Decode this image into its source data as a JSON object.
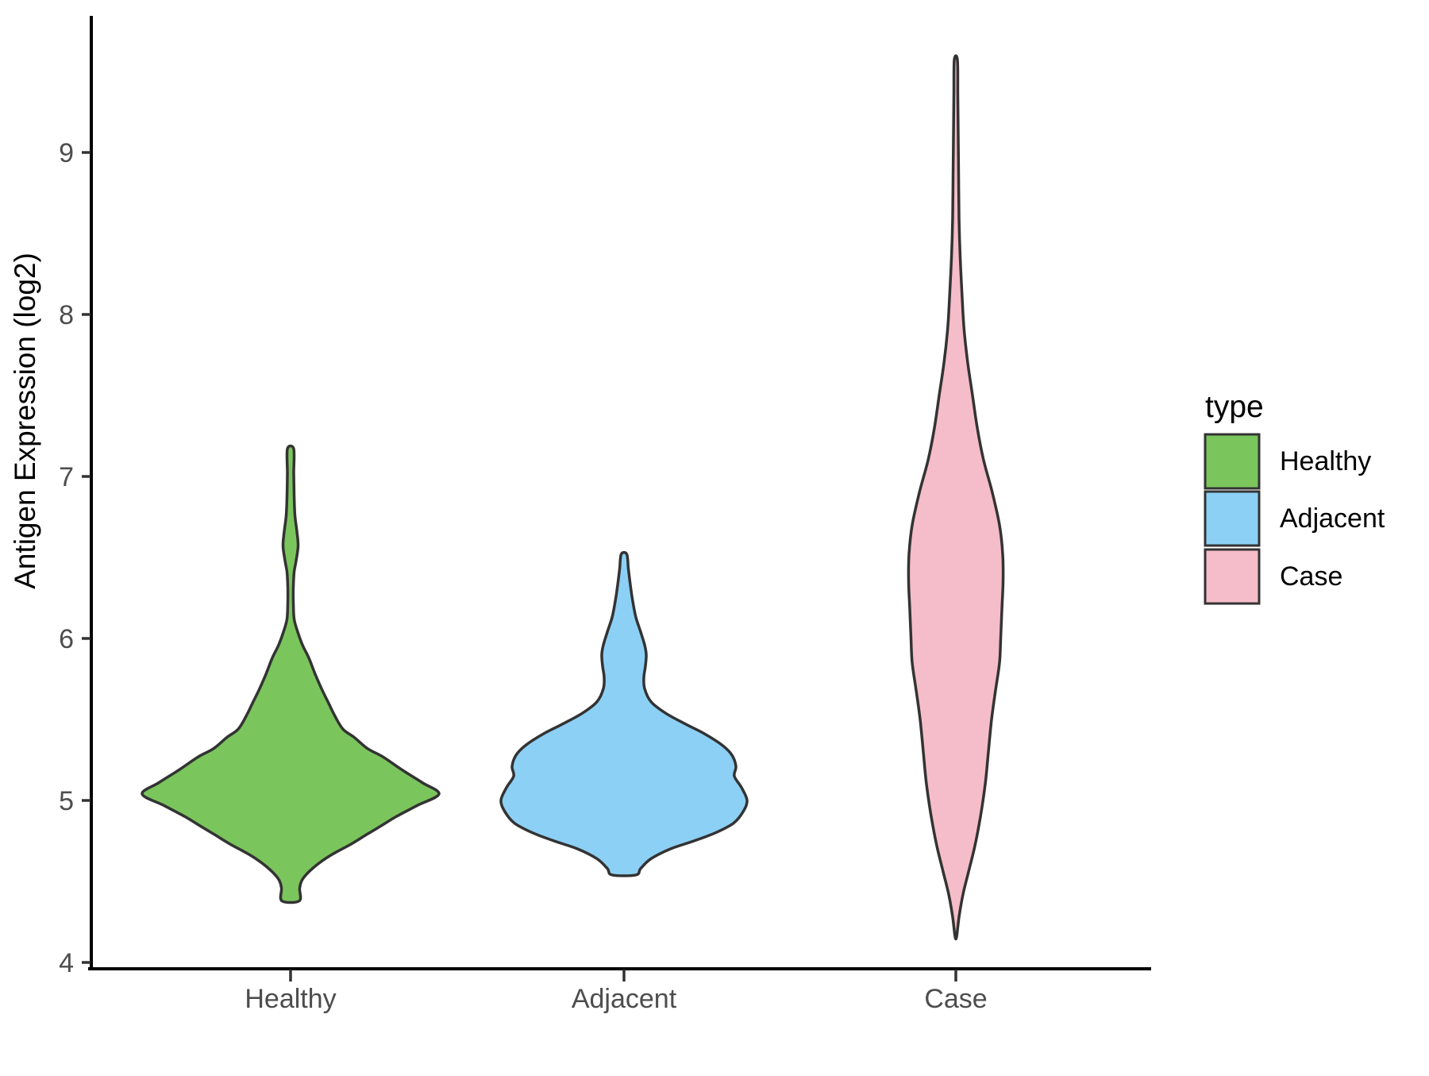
{
  "figure": {
    "background": "#FFFFFF"
  },
  "legend": {
    "title": "type",
    "position": "right",
    "items": [
      {
        "label": "Healthy",
        "color": "#7BC55D"
      },
      {
        "label": "Adjacent",
        "color": "#8DD0F5"
      },
      {
        "label": "Case",
        "color": "#F5BDC9"
      }
    ]
  },
  "colors": {
    "outline": "#333333",
    "axis_line": "#000000",
    "tick_mark": "#333333",
    "tick_label": "#4D4D4D",
    "text": "#000000",
    "healthy_fill": "#7BC55D",
    "adjacent_fill": "#8DD0F5",
    "case_fill": "#F5BDC9"
  },
  "chart_data": {
    "type": "violin",
    "title": "",
    "xlabel": "",
    "ylabel": "Antigen Expression (log2)",
    "categories": [
      "Healthy",
      "Adjacent",
      "Case"
    ],
    "y_ticks": [
      4,
      5,
      6,
      7,
      8,
      9
    ],
    "ylim": [
      3.9,
      9.9
    ],
    "grid": false,
    "legend_position": "right",
    "series": [
      {
        "name": "Healthy",
        "color": "#7BC55D",
        "min": 4.38,
        "max": 7.17,
        "peak_density_at": 5.05,
        "profile": [
          [
            7.17,
            4
          ],
          [
            7.02,
            4
          ],
          [
            6.88,
            4.5
          ],
          [
            6.76,
            5.5
          ],
          [
            6.66,
            8
          ],
          [
            6.57,
            9.5
          ],
          [
            6.48,
            7
          ],
          [
            6.41,
            4.5
          ],
          [
            6.32,
            3.5
          ],
          [
            6.22,
            3.5
          ],
          [
            6.12,
            4.5
          ],
          [
            6.04,
            9
          ],
          [
            5.96,
            15
          ],
          [
            5.88,
            23
          ],
          [
            5.78,
            31
          ],
          [
            5.69,
            39
          ],
          [
            5.6,
            48
          ],
          [
            5.52,
            56
          ],
          [
            5.44,
            66
          ],
          [
            5.39,
            80
          ],
          [
            5.32,
            97
          ],
          [
            5.27,
            116
          ],
          [
            5.19,
            140
          ],
          [
            5.11,
            166
          ],
          [
            5.04,
            187
          ],
          [
            4.97,
            160
          ],
          [
            4.9,
            133
          ],
          [
            4.84,
            113
          ],
          [
            4.79,
            96
          ],
          [
            4.73,
            76
          ],
          [
            4.66,
            50
          ],
          [
            4.59,
            30
          ],
          [
            4.52,
            16
          ],
          [
            4.46,
            11.5
          ],
          [
            4.38,
            11
          ]
        ]
      },
      {
        "name": "Adjacent",
        "color": "#8DD0F5",
        "min": 4.54,
        "max": 6.52,
        "peak_density_at": 5.0,
        "profile": [
          [
            6.52,
            3.5
          ],
          [
            6.43,
            5.5
          ],
          [
            6.33,
            8
          ],
          [
            6.23,
            11
          ],
          [
            6.13,
            15
          ],
          [
            6.04,
            21
          ],
          [
            5.96,
            26
          ],
          [
            5.9,
            28
          ],
          [
            5.83,
            27
          ],
          [
            5.76,
            25
          ],
          [
            5.69,
            26
          ],
          [
            5.61,
            34
          ],
          [
            5.54,
            52
          ],
          [
            5.47,
            78
          ],
          [
            5.41,
            102
          ],
          [
            5.34,
            124
          ],
          [
            5.28,
            136
          ],
          [
            5.21,
            141
          ],
          [
            5.15,
            139
          ],
          [
            5.08,
            148
          ],
          [
            5.0,
            155
          ],
          [
            4.93,
            150
          ],
          [
            4.86,
            138
          ],
          [
            4.8,
            115
          ],
          [
            4.75,
            88
          ],
          [
            4.7,
            58
          ],
          [
            4.64,
            34
          ],
          [
            4.58,
            21
          ],
          [
            4.54,
            15
          ]
        ]
      },
      {
        "name": "Case",
        "color": "#F5BDC9",
        "min": 4.16,
        "max": 9.57,
        "peak_density_at": 6.4,
        "profile": [
          [
            9.57,
            2
          ],
          [
            9.35,
            2.5
          ],
          [
            9.1,
            3
          ],
          [
            8.85,
            3.5
          ],
          [
            8.6,
            4
          ],
          [
            8.35,
            5.5
          ],
          [
            8.1,
            8
          ],
          [
            7.9,
            10.5
          ],
          [
            7.7,
            15
          ],
          [
            7.5,
            21
          ],
          [
            7.3,
            27
          ],
          [
            7.1,
            35
          ],
          [
            6.9,
            46
          ],
          [
            6.7,
            55
          ],
          [
            6.52,
            59
          ],
          [
            6.35,
            59.5
          ],
          [
            6.18,
            58
          ],
          [
            6.0,
            56.5
          ],
          [
            5.85,
            55
          ],
          [
            5.68,
            50
          ],
          [
            5.5,
            45
          ],
          [
            5.3,
            41
          ],
          [
            5.1,
            37
          ],
          [
            4.9,
            31
          ],
          [
            4.72,
            24
          ],
          [
            4.56,
            16
          ],
          [
            4.42,
            9
          ],
          [
            4.28,
            4
          ],
          [
            4.16,
            1
          ]
        ]
      }
    ]
  }
}
